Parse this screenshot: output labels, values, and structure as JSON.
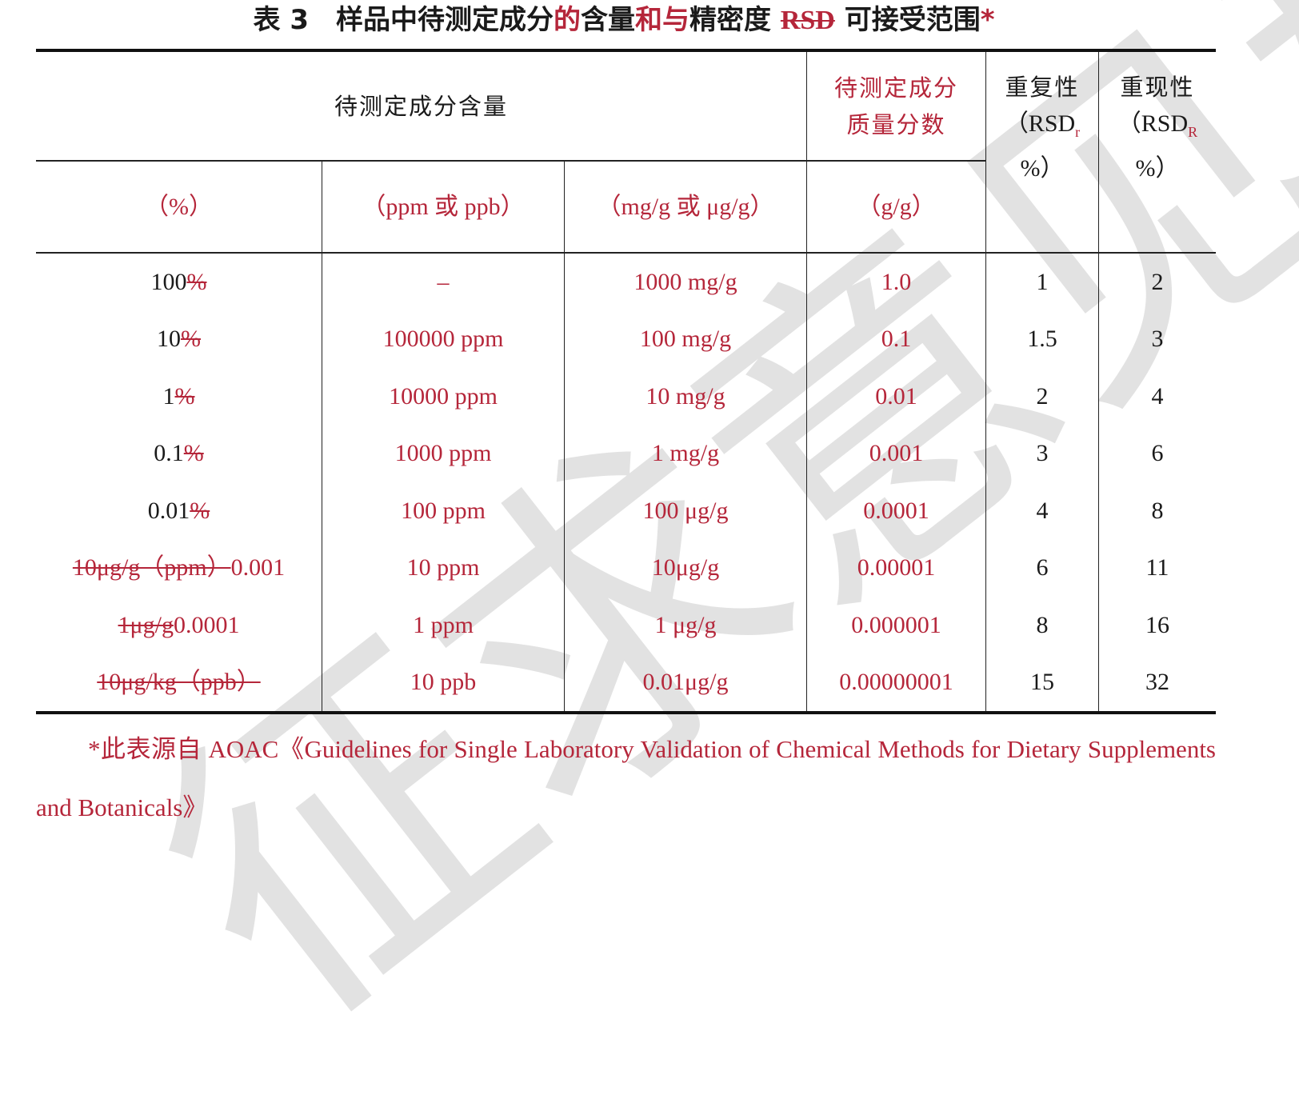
{
  "title": [
    {
      "t": "表 3　样品中待测定成分",
      "s": "n"
    },
    {
      "t": "的",
      "s": "ins"
    },
    {
      "t": "含量",
      "s": "n"
    },
    {
      "t": "和与",
      "s": "ins"
    },
    {
      "t": "精密度 ",
      "s": "n"
    },
    {
      "t": "RSD",
      "s": "del"
    },
    {
      "t": " 可接受范围",
      "s": "n"
    },
    {
      "t": "*",
      "s": "ins"
    }
  ],
  "header": {
    "content": "待测定成分含量",
    "mass_fraction": "待测定成分质量分数",
    "repeatability": "重复性",
    "repeatability_unit_pre": "（RSD",
    "repeatability_sub": "r",
    "repeatability_unit_post": "%）",
    "reproducibility": "重现性",
    "reproducibility_unit_pre": "（RSD",
    "reproducibility_sub": "R",
    "reproducibility_unit_post": "%）",
    "pct": "（%）",
    "ppm": "（ppm 或 ppb）",
    "mgg": "（mg/g 或 μg/g）",
    "gg": "（g/g）"
  },
  "rows": [
    {
      "pct": [
        {
          "t": "100",
          "s": "n"
        },
        {
          "t": "%",
          "s": "del"
        }
      ],
      "ppm": "–",
      "mgg": "1000 mg/g",
      "gg": "1.0",
      "rsdr": "1",
      "rsdR": "2"
    },
    {
      "pct": [
        {
          "t": "10",
          "s": "n"
        },
        {
          "t": "%",
          "s": "del"
        }
      ],
      "ppm": "100000 ppm",
      "mgg": "100 mg/g",
      "gg": "0.1",
      "rsdr": "1.5",
      "rsdR": "3"
    },
    {
      "pct": [
        {
          "t": "1",
          "s": "n"
        },
        {
          "t": "%",
          "s": "del"
        }
      ],
      "ppm": "10000 ppm",
      "mgg": "10 mg/g",
      "gg": "0.01",
      "rsdr": "2",
      "rsdR": "4"
    },
    {
      "pct": [
        {
          "t": "0.1",
          "s": "n"
        },
        {
          "t": "%",
          "s": "del"
        }
      ],
      "ppm": "1000 ppm",
      "mgg": "1 mg/g",
      "gg": "0.001",
      "rsdr": "3",
      "rsdR": "6"
    },
    {
      "pct": [
        {
          "t": "0.01",
          "s": "n"
        },
        {
          "t": "%",
          "s": "del"
        }
      ],
      "ppm": "100 ppm",
      "mgg": "100 μg/g",
      "gg": "0.0001",
      "rsdr": "4",
      "rsdR": "8"
    },
    {
      "pct": [
        {
          "t": "10μg/g（ppm）",
          "s": "del"
        },
        {
          "t": "0.001",
          "s": "ins"
        }
      ],
      "ppm": "10 ppm",
      "mgg": "10μg/g",
      "gg": "0.00001",
      "rsdr": "6",
      "rsdR": "11"
    },
    {
      "pct": [
        {
          "t": "1μg/g",
          "s": "del"
        },
        {
          "t": "0.0001",
          "s": "ins"
        }
      ],
      "ppm": "1 ppm",
      "mgg": "1 μg/g",
      "gg": "0.000001",
      "rsdr": "8",
      "rsdR": "16"
    },
    {
      "pct": [
        {
          "t": "10μg/kg（ppb）",
          "s": "del"
        }
      ],
      "ppm": "10 ppb",
      "mgg": "0.01μg/g",
      "gg": "0.00000001",
      "rsdr": "15",
      "rsdR": "32"
    }
  ],
  "footnote": {
    "mark": "*此表源自 ",
    "text": "AOAC《Guidelines for Single Laboratory Validation of Chemical Methods for Dietary Supplements and Botanicals》"
  },
  "watermark": "征求意见稿",
  "colors": {
    "insert": "#b5263a",
    "text": "#1a1a1a"
  }
}
